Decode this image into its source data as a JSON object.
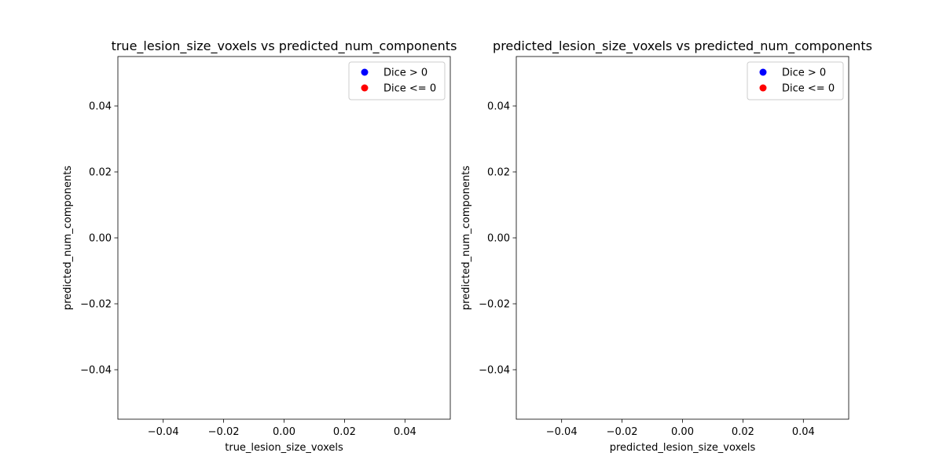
{
  "chart_data": [
    {
      "type": "scatter",
      "title": "true_lesion_size_voxels vs predicted_num_components",
      "xlabel": "true_lesion_size_voxels",
      "ylabel": "predicted_num_components",
      "xlim": [
        -0.055,
        0.055
      ],
      "ylim": [
        -0.055,
        0.055
      ],
      "x_ticks": [
        -0.04,
        -0.02,
        0.0,
        0.02,
        0.04
      ],
      "y_ticks": [
        -0.04,
        -0.02,
        0.0,
        0.02,
        0.04
      ],
      "x_tick_labels": [
        "−0.04",
        "−0.02",
        "0.00",
        "0.02",
        "0.04"
      ],
      "y_tick_labels": [
        "−0.04",
        "−0.02",
        "0.00",
        "0.02",
        "0.04"
      ],
      "grid": false,
      "legend_position": "upper right",
      "series": [
        {
          "name": "Dice > 0",
          "color": "#0000ff",
          "x": [],
          "y": []
        },
        {
          "name": "Dice <= 0",
          "color": "#ff0000",
          "x": [],
          "y": []
        }
      ]
    },
    {
      "type": "scatter",
      "title": "predicted_lesion_size_voxels vs predicted_num_components",
      "xlabel": "predicted_lesion_size_voxels",
      "ylabel": "predicted_num_components",
      "xlim": [
        -0.055,
        0.055
      ],
      "ylim": [
        -0.055,
        0.055
      ],
      "x_ticks": [
        -0.04,
        -0.02,
        0.0,
        0.02,
        0.04
      ],
      "y_ticks": [
        -0.04,
        -0.02,
        0.0,
        0.02,
        0.04
      ],
      "x_tick_labels": [
        "−0.04",
        "−0.02",
        "0.00",
        "0.02",
        "0.04"
      ],
      "y_tick_labels": [
        "−0.04",
        "−0.02",
        "0.00",
        "0.02",
        "0.04"
      ],
      "grid": false,
      "legend_position": "upper right",
      "series": [
        {
          "name": "Dice > 0",
          "color": "#0000ff",
          "x": [],
          "y": []
        },
        {
          "name": "Dice <= 0",
          "color": "#ff0000",
          "x": [],
          "y": []
        }
      ]
    }
  ]
}
